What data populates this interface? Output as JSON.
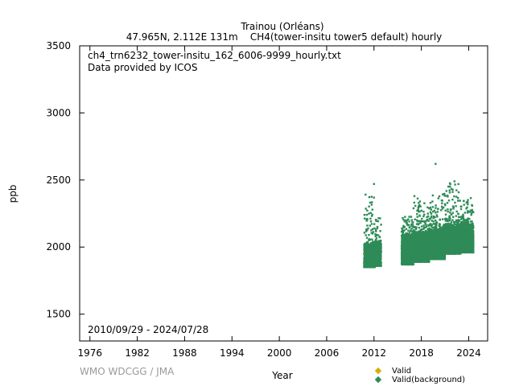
{
  "chart_data": {
    "type": "scatter",
    "title": "Trainou (Orléans)",
    "subtitle": "47.965N, 2.112E 131m    CH4(tower-insitu tower5 default) hourly",
    "file_label": "ch4_trn6232_tower-insitu_162_6006-9999_hourly.txt",
    "provider": "Data provided by ICOS",
    "date_range": "2010/09/29 - 2024/07/28",
    "xlabel": "Year",
    "ylabel": "ppb",
    "xlim": [
      1974.7,
      2026.4
    ],
    "ylim": [
      1300,
      3500
    ],
    "x_ticks": [
      "1976",
      "1982",
      "1988",
      "1994",
      "2000",
      "2006",
      "2012",
      "2018",
      "2024"
    ],
    "y_ticks": [
      "1500",
      "2000",
      "2500",
      "3000",
      "3500"
    ],
    "grid": false,
    "legend_position": "bottom-right",
    "legend": [
      "Valid",
      "Valid(background)"
    ],
    "colors": {
      "valid": "#d4b000",
      "background": "#2e8b57",
      "credit": "#9a9a9a"
    },
    "series": [
      {
        "name": "Valid(background)",
        "segments": [
          {
            "x_start": 2010.75,
            "x_end": 2012.1,
            "low": 1850,
            "high": 2020,
            "spike_max": 2400
          },
          {
            "x_start": 2012.1,
            "x_end": 2012.9,
            "low": 1860,
            "high": 2030,
            "spike_max": 2250
          },
          {
            "x_start": 2015.5,
            "x_end": 2017.0,
            "low": 1870,
            "high": 2080,
            "spike_max": 2230
          },
          {
            "x_start": 2017.0,
            "x_end": 2019.0,
            "low": 1890,
            "high": 2110,
            "spike_max": 2380
          },
          {
            "x_start": 2019.0,
            "x_end": 2021.0,
            "low": 1910,
            "high": 2130,
            "spike_max": 2400
          },
          {
            "x_start": 2021.0,
            "x_end": 2023.0,
            "low": 1950,
            "high": 2160,
            "spike_max": 2480
          },
          {
            "x_start": 2023.0,
            "x_end": 2024.6,
            "low": 1960,
            "high": 2170,
            "spike_max": 2370
          }
        ],
        "outliers": [
          {
            "x": 2012.0,
            "y": 2470
          },
          {
            "x": 2019.8,
            "y": 2620
          },
          {
            "x": 2022.2,
            "y": 2490
          }
        ]
      }
    ],
    "credit": "WMO WDCGG / JMA"
  }
}
